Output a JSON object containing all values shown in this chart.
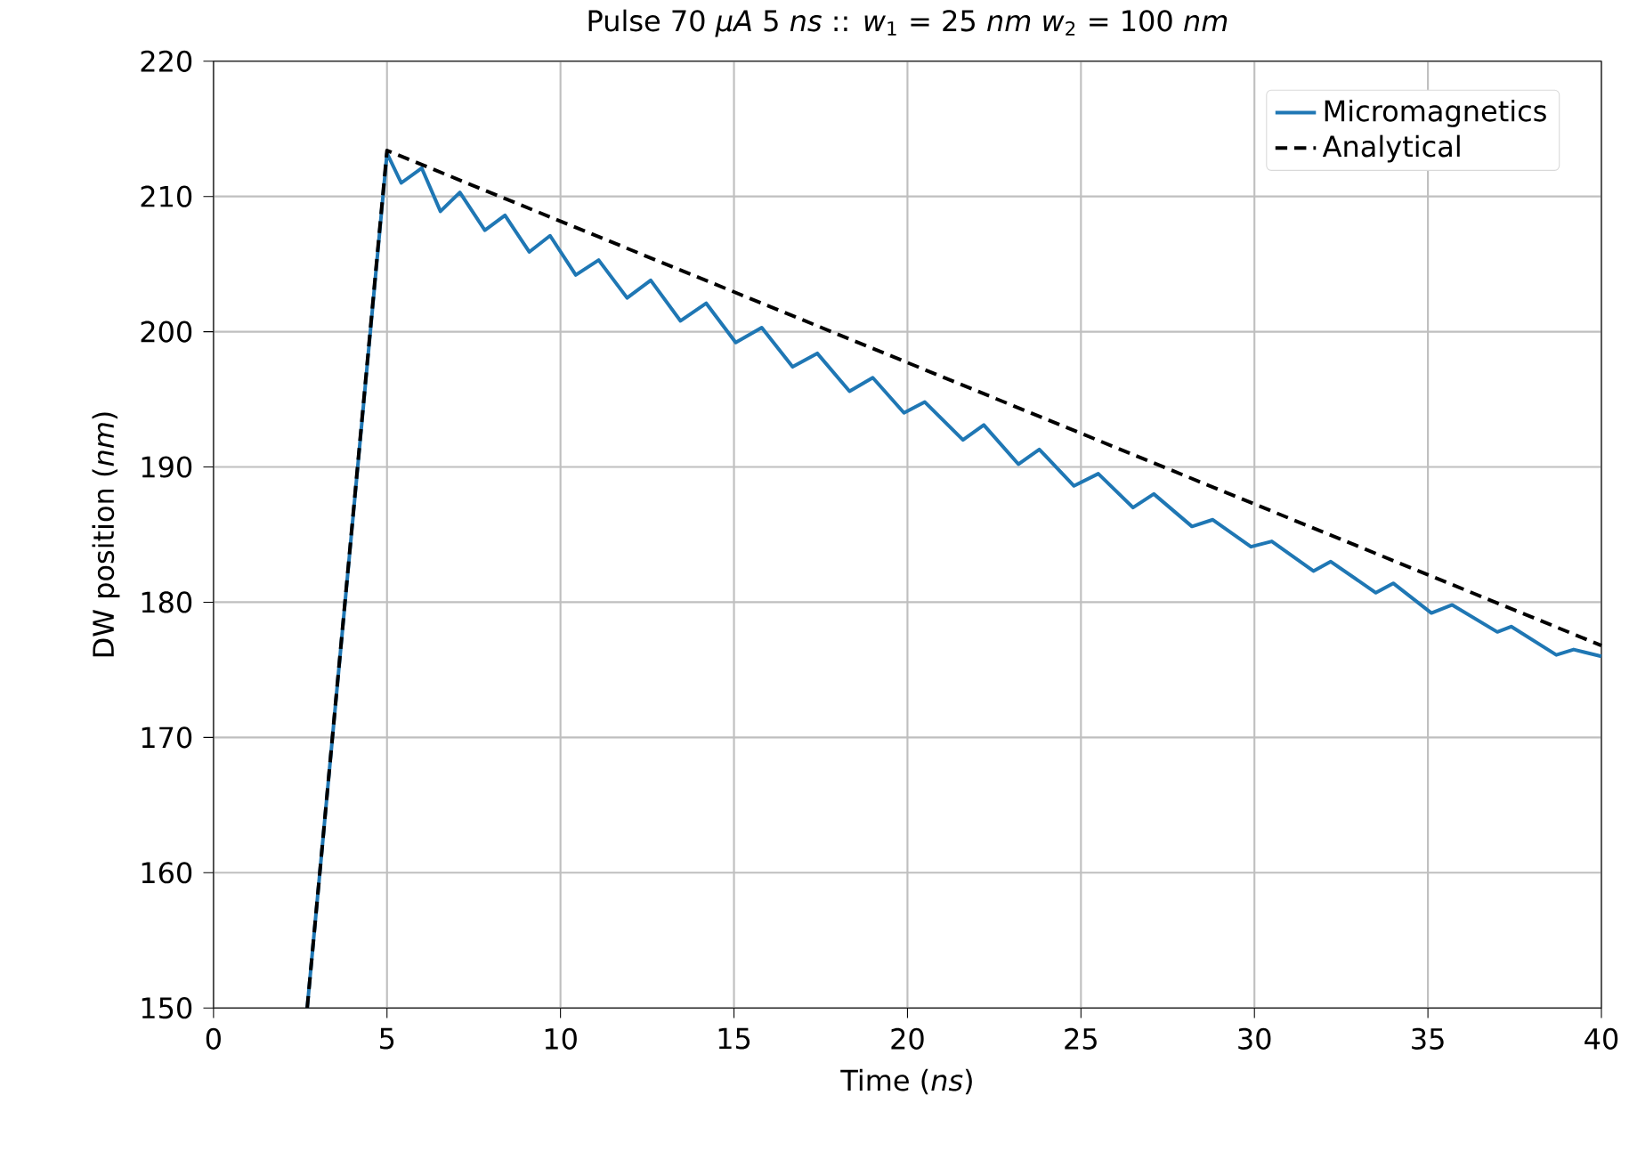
{
  "chart_data": {
    "type": "line",
    "title": "Pulse 70 *μA* 5 *ns* :: *w*$_{1}$ = 25 *nm* *w*$_{2}$ = 100 *nm*",
    "xlabel": "Time (*ns*)",
    "ylabel": "DW position (*nm*)",
    "xlim": [
      0,
      40
    ],
    "ylim": [
      150,
      220
    ],
    "xticks": [
      0,
      5,
      10,
      15,
      20,
      25,
      30,
      35,
      40
    ],
    "yticks": [
      150,
      160,
      170,
      180,
      190,
      200,
      210,
      220
    ],
    "grid": true,
    "legend": "top right",
    "series": [
      {
        "name": "Micromagnetics",
        "color": "#1f77b4",
        "line_style": "solid",
        "x": [
          2.7,
          5.0,
          5.41,
          6.0,
          6.54,
          7.1,
          7.82,
          8.4,
          9.1,
          9.7,
          10.44,
          11.1,
          11.92,
          12.6,
          13.46,
          14.2,
          15.05,
          15.8,
          16.69,
          17.4,
          18.33,
          19.0,
          19.9,
          20.5,
          21.6,
          22.2,
          23.2,
          23.8,
          24.8,
          25.5,
          26.5,
          27.1,
          28.2,
          28.8,
          29.9,
          30.5,
          31.7,
          32.2,
          33.5,
          34.0,
          35.1,
          35.7,
          37.0,
          37.4,
          38.7,
          39.2,
          40.0
        ],
        "values": [
          150,
          213.2,
          211.0,
          212.1,
          208.9,
          210.3,
          207.5,
          208.6,
          205.9,
          207.1,
          204.2,
          205.3,
          202.5,
          203.8,
          200.8,
          202.1,
          199.2,
          200.3,
          197.4,
          198.4,
          195.6,
          196.6,
          194.0,
          194.8,
          192.0,
          193.1,
          190.2,
          191.3,
          188.6,
          189.5,
          187.0,
          188.0,
          185.6,
          186.1,
          184.1,
          184.5,
          182.3,
          183.0,
          180.7,
          181.4,
          179.2,
          179.8,
          177.8,
          178.2,
          176.1,
          176.5,
          176.0
        ]
      },
      {
        "name": "Analytical",
        "color": "#000000",
        "line_style": "dashed",
        "x": [
          2.7,
          5.0,
          40.0
        ],
        "values": [
          150,
          213.4,
          176.8
        ]
      }
    ]
  }
}
